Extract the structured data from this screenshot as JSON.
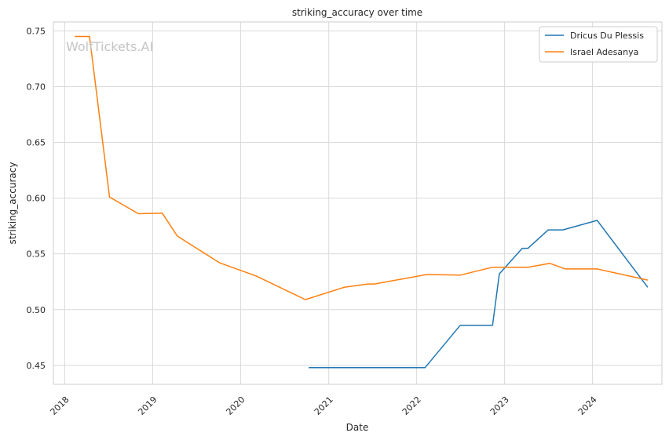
{
  "chart_data": {
    "type": "line",
    "title": "striking_accuracy over time",
    "xlabel": "Date",
    "ylabel": "striking_accuracy",
    "watermark": "WolfTickets.AI",
    "x_ticks": [
      "2018",
      "2019",
      "2020",
      "2021",
      "2022",
      "2023",
      "2024"
    ],
    "y_ticks": [
      "0.45",
      "0.50",
      "0.55",
      "0.60",
      "0.65",
      "0.70",
      "0.75"
    ],
    "xlim": [
      "2017-11-15",
      "2024-10-15"
    ],
    "ylim": [
      0.433,
      0.758
    ],
    "grid": true,
    "legend_position": "top-right",
    "series": [
      {
        "name": "Dricus Du Plessis",
        "color": "#1f77b4",
        "x": [
          "2020-10-10",
          "2022-02-05",
          "2022-07-01",
          "2022-11-12",
          "2022-12-10",
          "2023-03-15",
          "2023-04-08",
          "2023-07-01",
          "2023-08-31",
          "2024-01-20",
          "2024-08-17"
        ],
        "y": [
          0.448,
          0.448,
          0.486,
          0.486,
          0.532,
          0.555,
          0.555,
          0.5715,
          0.5715,
          0.58,
          0.52
        ]
      },
      {
        "name": "Israel Adesanya",
        "color": "#ff7f0e",
        "x": [
          "2018-02-11",
          "2018-04-14",
          "2018-07-06",
          "2018-11-03",
          "2019-02-10",
          "2019-04-13",
          "2019-10-06",
          "2020-03-07",
          "2020-09-26",
          "2021-03-06",
          "2021-06-12",
          "2021-07-10",
          "2022-02-12",
          "2022-07-02",
          "2022-11-12",
          "2023-04-08",
          "2023-07-08",
          "2023-09-10",
          "2024-01-20",
          "2024-08-17"
        ],
        "y": [
          0.745,
          0.745,
          0.601,
          0.586,
          0.5865,
          0.566,
          0.542,
          0.53,
          0.509,
          0.52,
          0.523,
          0.523,
          0.5315,
          0.531,
          0.538,
          0.538,
          0.5415,
          0.5365,
          0.5365,
          0.5265
        ]
      }
    ]
  }
}
